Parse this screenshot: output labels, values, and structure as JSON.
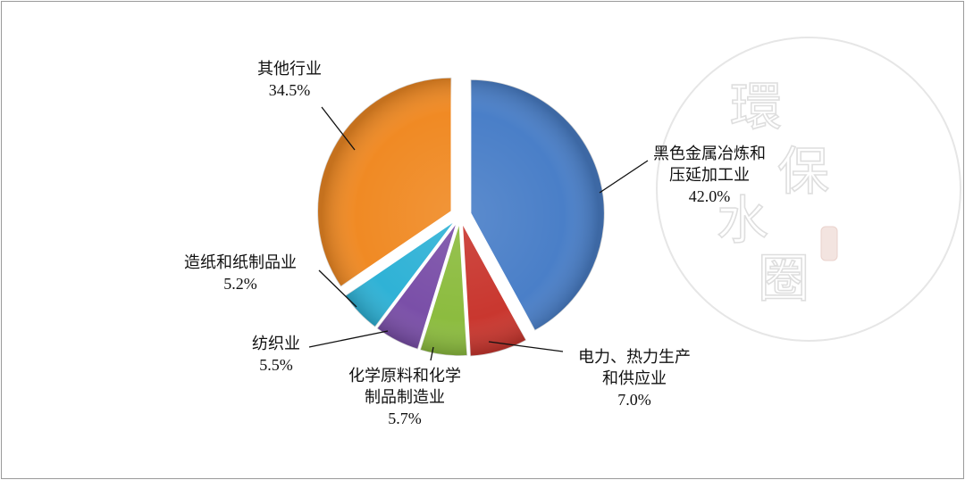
{
  "chart_data": {
    "type": "pie",
    "title": "",
    "slices": [
      {
        "label_lines": [
          "黑色金属冶炼和",
          "压延加工业"
        ],
        "value_label": "42.0%",
        "value": 42.0,
        "color": "#4a7fc8"
      },
      {
        "label_lines": [
          "电力、热力生产",
          "和供应业"
        ],
        "value_label": "7.0%",
        "value": 7.0,
        "color": "#c9372f"
      },
      {
        "label_lines": [
          "化学原料和化学",
          "制品制造业"
        ],
        "value_label": "5.7%",
        "value": 5.7,
        "color": "#8cbc3f"
      },
      {
        "label_lines": [
          "纺织业"
        ],
        "value_label": "5.5%",
        "value": 5.5,
        "color": "#7a4fa8"
      },
      {
        "label_lines": [
          "造纸和纸制品业"
        ],
        "value_label": "5.2%",
        "value": 5.2,
        "color": "#2fb2d6"
      },
      {
        "label_lines": [
          "其他行业"
        ],
        "value_label": "34.5%",
        "value": 34.5,
        "color": "#f08a24"
      }
    ],
    "start_angle_deg": 0,
    "direction": "clockwise",
    "exploded": true,
    "legend": "none"
  },
  "watermark": {
    "chars": [
      "環",
      "保",
      "水",
      "圈"
    ],
    "seal_color": "#f3e4e0"
  }
}
